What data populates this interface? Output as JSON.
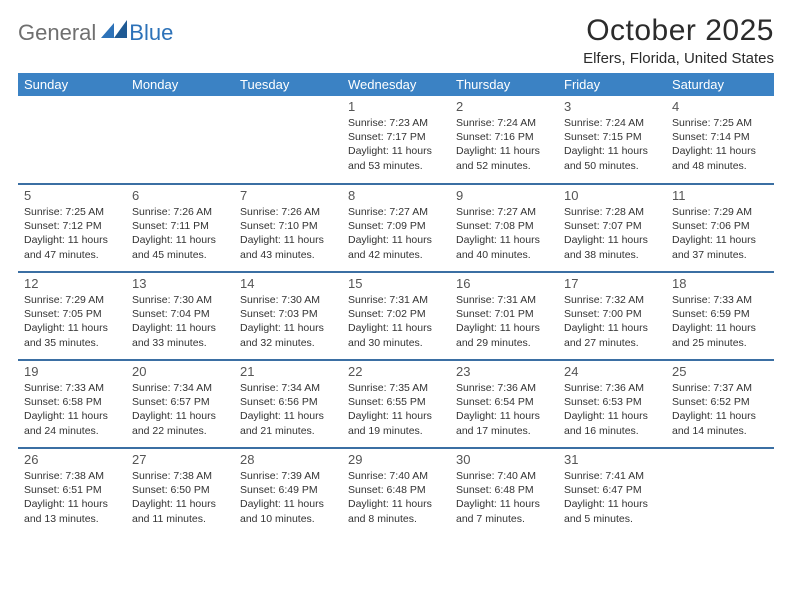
{
  "logo": {
    "text1": "General",
    "text2": "Blue"
  },
  "title": "October 2025",
  "subtitle": "Elfers, Florida, United States",
  "colors": {
    "header_bg": "#3b82c4",
    "header_text": "#ffffff",
    "row_border": "#3b6fa3",
    "body_text": "#333333",
    "daynum": "#555555",
    "logo_gray": "#6f6f6f",
    "logo_blue": "#2d72b8"
  },
  "day_headers": [
    "Sunday",
    "Monday",
    "Tuesday",
    "Wednesday",
    "Thursday",
    "Friday",
    "Saturday"
  ],
  "calendar": {
    "first_weekday_index": 3,
    "days": [
      {
        "n": 1,
        "sunrise": "7:23 AM",
        "sunset": "7:17 PM",
        "daylight": "11 hours and 53 minutes."
      },
      {
        "n": 2,
        "sunrise": "7:24 AM",
        "sunset": "7:16 PM",
        "daylight": "11 hours and 52 minutes."
      },
      {
        "n": 3,
        "sunrise": "7:24 AM",
        "sunset": "7:15 PM",
        "daylight": "11 hours and 50 minutes."
      },
      {
        "n": 4,
        "sunrise": "7:25 AM",
        "sunset": "7:14 PM",
        "daylight": "11 hours and 48 minutes."
      },
      {
        "n": 5,
        "sunrise": "7:25 AM",
        "sunset": "7:12 PM",
        "daylight": "11 hours and 47 minutes."
      },
      {
        "n": 6,
        "sunrise": "7:26 AM",
        "sunset": "7:11 PM",
        "daylight": "11 hours and 45 minutes."
      },
      {
        "n": 7,
        "sunrise": "7:26 AM",
        "sunset": "7:10 PM",
        "daylight": "11 hours and 43 minutes."
      },
      {
        "n": 8,
        "sunrise": "7:27 AM",
        "sunset": "7:09 PM",
        "daylight": "11 hours and 42 minutes."
      },
      {
        "n": 9,
        "sunrise": "7:27 AM",
        "sunset": "7:08 PM",
        "daylight": "11 hours and 40 minutes."
      },
      {
        "n": 10,
        "sunrise": "7:28 AM",
        "sunset": "7:07 PM",
        "daylight": "11 hours and 38 minutes."
      },
      {
        "n": 11,
        "sunrise": "7:29 AM",
        "sunset": "7:06 PM",
        "daylight": "11 hours and 37 minutes."
      },
      {
        "n": 12,
        "sunrise": "7:29 AM",
        "sunset": "7:05 PM",
        "daylight": "11 hours and 35 minutes."
      },
      {
        "n": 13,
        "sunrise": "7:30 AM",
        "sunset": "7:04 PM",
        "daylight": "11 hours and 33 minutes."
      },
      {
        "n": 14,
        "sunrise": "7:30 AM",
        "sunset": "7:03 PM",
        "daylight": "11 hours and 32 minutes."
      },
      {
        "n": 15,
        "sunrise": "7:31 AM",
        "sunset": "7:02 PM",
        "daylight": "11 hours and 30 minutes."
      },
      {
        "n": 16,
        "sunrise": "7:31 AM",
        "sunset": "7:01 PM",
        "daylight": "11 hours and 29 minutes."
      },
      {
        "n": 17,
        "sunrise": "7:32 AM",
        "sunset": "7:00 PM",
        "daylight": "11 hours and 27 minutes."
      },
      {
        "n": 18,
        "sunrise": "7:33 AM",
        "sunset": "6:59 PM",
        "daylight": "11 hours and 25 minutes."
      },
      {
        "n": 19,
        "sunrise": "7:33 AM",
        "sunset": "6:58 PM",
        "daylight": "11 hours and 24 minutes."
      },
      {
        "n": 20,
        "sunrise": "7:34 AM",
        "sunset": "6:57 PM",
        "daylight": "11 hours and 22 minutes."
      },
      {
        "n": 21,
        "sunrise": "7:34 AM",
        "sunset": "6:56 PM",
        "daylight": "11 hours and 21 minutes."
      },
      {
        "n": 22,
        "sunrise": "7:35 AM",
        "sunset": "6:55 PM",
        "daylight": "11 hours and 19 minutes."
      },
      {
        "n": 23,
        "sunrise": "7:36 AM",
        "sunset": "6:54 PM",
        "daylight": "11 hours and 17 minutes."
      },
      {
        "n": 24,
        "sunrise": "7:36 AM",
        "sunset": "6:53 PM",
        "daylight": "11 hours and 16 minutes."
      },
      {
        "n": 25,
        "sunrise": "7:37 AM",
        "sunset": "6:52 PM",
        "daylight": "11 hours and 14 minutes."
      },
      {
        "n": 26,
        "sunrise": "7:38 AM",
        "sunset": "6:51 PM",
        "daylight": "11 hours and 13 minutes."
      },
      {
        "n": 27,
        "sunrise": "7:38 AM",
        "sunset": "6:50 PM",
        "daylight": "11 hours and 11 minutes."
      },
      {
        "n": 28,
        "sunrise": "7:39 AM",
        "sunset": "6:49 PM",
        "daylight": "11 hours and 10 minutes."
      },
      {
        "n": 29,
        "sunrise": "7:40 AM",
        "sunset": "6:48 PM",
        "daylight": "11 hours and 8 minutes."
      },
      {
        "n": 30,
        "sunrise": "7:40 AM",
        "sunset": "6:48 PM",
        "daylight": "11 hours and 7 minutes."
      },
      {
        "n": 31,
        "sunrise": "7:41 AM",
        "sunset": "6:47 PM",
        "daylight": "11 hours and 5 minutes."
      }
    ]
  },
  "labels": {
    "sunrise": "Sunrise:",
    "sunset": "Sunset:",
    "daylight": "Daylight:"
  }
}
